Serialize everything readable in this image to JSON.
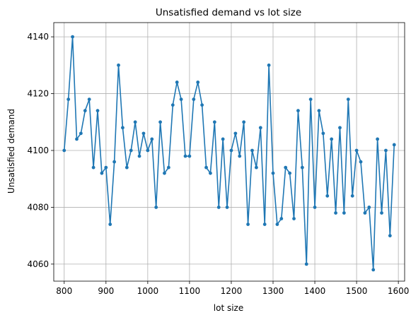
{
  "chart_data": {
    "type": "line",
    "title": "Unsatisfied demand vs lot size",
    "xlabel": "lot size",
    "ylabel": "Unsatisfied demand",
    "xlim": [
      775,
      1615
    ],
    "ylim": [
      4054,
      4145
    ],
    "xticks": [
      800,
      900,
      1000,
      1100,
      1200,
      1300,
      1400,
      1500,
      1600
    ],
    "yticks": [
      4060,
      4080,
      4100,
      4120,
      4140
    ],
    "grid": true,
    "series": [
      {
        "color": "#1f77b4",
        "marker": "circle",
        "x": [
          800,
          810,
          820,
          830,
          840,
          850,
          860,
          870,
          880,
          890,
          900,
          910,
          920,
          930,
          940,
          950,
          960,
          970,
          980,
          990,
          1000,
          1010,
          1020,
          1030,
          1040,
          1050,
          1060,
          1070,
          1080,
          1090,
          1100,
          1110,
          1120,
          1130,
          1140,
          1150,
          1160,
          1170,
          1180,
          1190,
          1200,
          1210,
          1220,
          1230,
          1240,
          1250,
          1260,
          1270,
          1280,
          1290,
          1300,
          1310,
          1320,
          1330,
          1340,
          1350,
          1360,
          1370,
          1380,
          1390,
          1400,
          1410,
          1420,
          1430,
          1440,
          1450,
          1460,
          1470,
          1480,
          1490,
          1500,
          1510,
          1520,
          1530,
          1540,
          1550,
          1560,
          1570,
          1580,
          1590
        ],
        "y": [
          4100,
          4118,
          4140,
          4104,
          4106,
          4114,
          4118,
          4094,
          4114,
          4092,
          4094,
          4074,
          4096,
          4130,
          4108,
          4094,
          4100,
          4110,
          4098,
          4106,
          4100,
          4104,
          4080,
          4110,
          4092,
          4094,
          4116,
          4124,
          4118,
          4098,
          4098,
          4118,
          4124,
          4116,
          4094,
          4092,
          4110,
          4080,
          4104,
          4080,
          4100,
          4106,
          4098,
          4110,
          4074,
          4100,
          4094,
          4108,
          4074,
          4130,
          4092,
          4074,
          4076,
          4094,
          4092,
          4076,
          4114,
          4094,
          4060,
          4118,
          4080,
          4114,
          4106,
          4084,
          4104,
          4078,
          4108,
          4078,
          4118,
          4084,
          4100,
          4096,
          4078,
          4080,
          4058,
          4104,
          4078,
          4100,
          4070,
          4102
        ]
      }
    ]
  }
}
